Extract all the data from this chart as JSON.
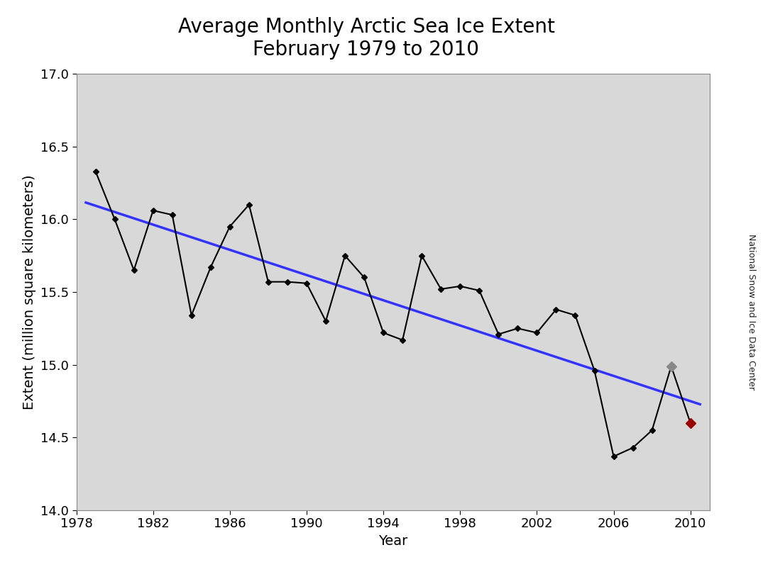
{
  "title_line1": "Average Monthly Arctic Sea Ice Extent",
  "title_line2": "February 1979 to 2010",
  "xlabel": "Year",
  "ylabel": "Extent (million square kilometers)",
  "watermark": "National Snow and Ice Data Center",
  "years": [
    1979,
    1980,
    1981,
    1982,
    1983,
    1984,
    1985,
    1986,
    1987,
    1988,
    1989,
    1990,
    1991,
    1992,
    1993,
    1994,
    1995,
    1996,
    1997,
    1998,
    1999,
    2000,
    2001,
    2002,
    2003,
    2004,
    2005,
    2006,
    2007,
    2008,
    2009,
    2010
  ],
  "extents": [
    16.33,
    16.0,
    15.65,
    16.06,
    16.03,
    15.34,
    15.67,
    15.95,
    16.1,
    15.57,
    15.57,
    15.56,
    15.3,
    15.75,
    15.6,
    15.22,
    15.17,
    15.75,
    15.52,
    15.54,
    15.51,
    15.21,
    15.25,
    15.22,
    15.38,
    15.34,
    14.96,
    14.37,
    14.43,
    14.55,
    14.99,
    14.6
  ],
  "main_line_color": "#000000",
  "trend_line_color": "#3333FF",
  "highlight_color_gray": "#888888",
  "highlight_color_red": "#990000",
  "fig_bg_color": "#ffffff",
  "plot_bg_color": "#d8d8d8",
  "ylim": [
    14.0,
    17.0
  ],
  "xlim": [
    1978,
    2011
  ],
  "xticks": [
    1978,
    1982,
    1986,
    1990,
    1994,
    1998,
    2002,
    2006,
    2010
  ],
  "yticks": [
    14.0,
    14.5,
    15.0,
    15.5,
    16.0,
    16.5,
    17.0
  ],
  "title_fontsize": 20,
  "axis_label_fontsize": 14,
  "tick_fontsize": 13,
  "watermark_fontsize": 9,
  "trend_start_year": 1979,
  "trend_end_year": 2010,
  "trend_slope": -0.043,
  "trend_intercept": 101.05
}
